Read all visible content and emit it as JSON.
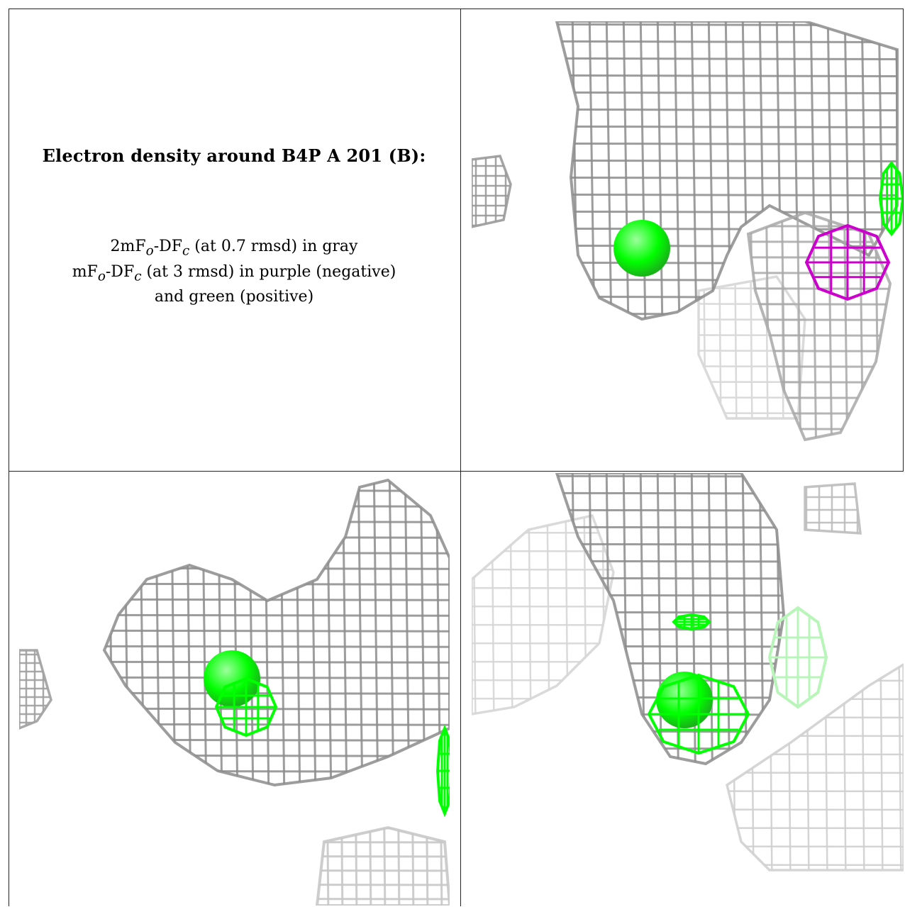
{
  "caption": {
    "title": "Electron density around B4P A 201 (B):",
    "line1_prefix": "2mF",
    "line1_sub_o": "o",
    "line1_mid": "-DF",
    "line1_sub_c": "c",
    "line1_suffix": " (at 0.7 rmsd) in gray",
    "line2_prefix": "mF",
    "line2_sub_o": "o",
    "line2_mid": "-DF",
    "line2_sub_c": "c",
    "line2_suffix": " (at 3 rmsd) in purple (negative)",
    "line3": "and green (positive)"
  },
  "colors": {
    "mesh_gray": "#8c8c8c",
    "mesh_light": "#d0d0d0",
    "positive_green": "#00ff00",
    "negative_purple": "#cc00cc",
    "border": "#222222"
  },
  "panels": [
    {
      "name": "view-top-right"
    },
    {
      "name": "view-bottom-left"
    },
    {
      "name": "view-bottom-right"
    }
  ]
}
